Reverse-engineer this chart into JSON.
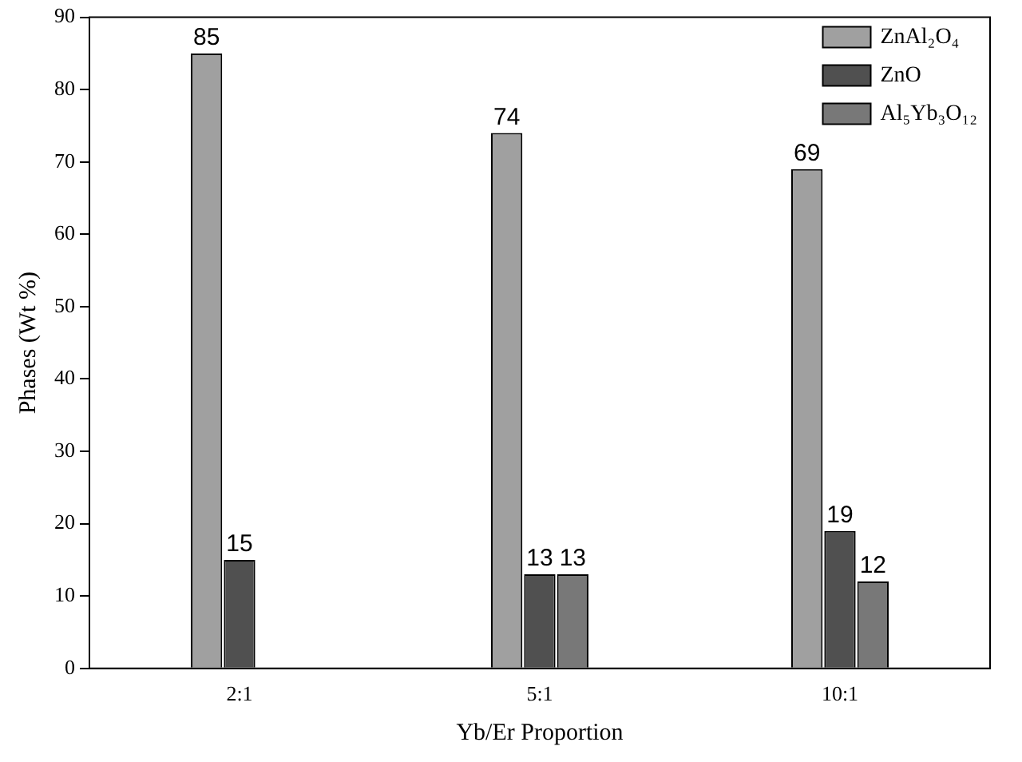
{
  "chart_data": {
    "type": "bar",
    "xlabel": "Yb/Er Proportion",
    "ylabel": "Phases (Wt %)",
    "categories": [
      "2:1",
      "5:1",
      "10:1"
    ],
    "series": [
      {
        "name": "ZnAl₂O₄",
        "color": "#a0a0a0",
        "values": [
          85,
          74,
          69
        ]
      },
      {
        "name": "ZnO",
        "color": "#505050",
        "values": [
          15,
          13,
          19
        ]
      },
      {
        "name": "Al₅Yb₃O₁₂",
        "color": "#787878",
        "values": [
          null,
          13,
          12
        ]
      }
    ],
    "ylim": [
      0,
      90
    ],
    "yticks": [
      0,
      10,
      20,
      30,
      40,
      50,
      60,
      70,
      80,
      90
    ],
    "grid": false,
    "legend": "top right",
    "data_labels": true
  }
}
